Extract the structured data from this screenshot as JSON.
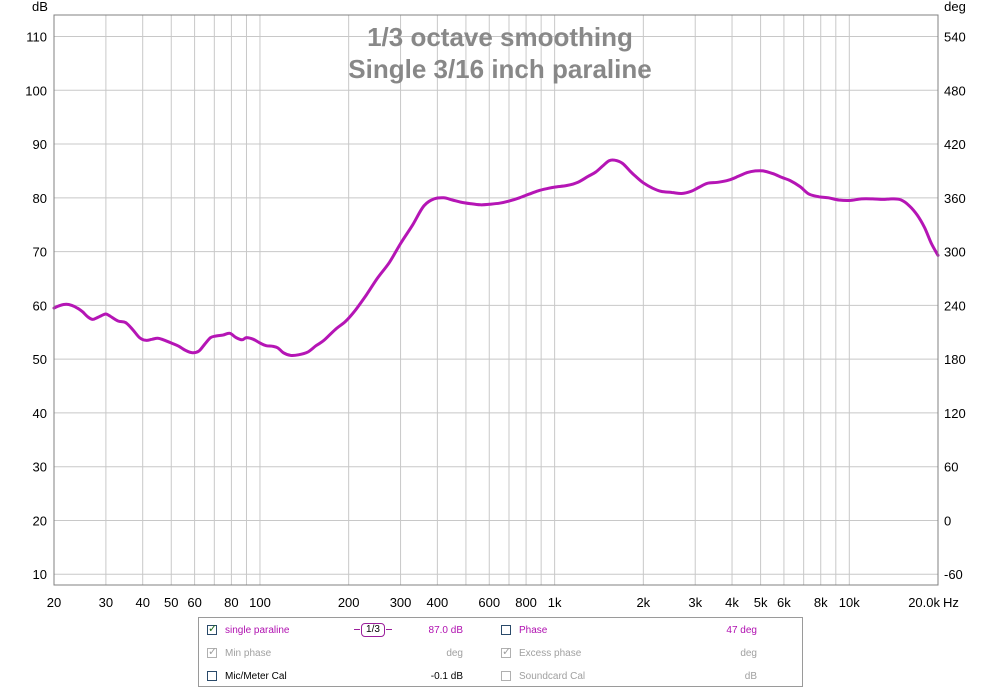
{
  "chart_data": {
    "type": "line",
    "title": "1/3 octave smoothing",
    "subtitle": "Single 3/16 inch paraline",
    "ylabel": "dB",
    "y2label": "deg",
    "xlabel": "Hz",
    "xscale": "log",
    "xlim": [
      20,
      20000
    ],
    "ylim": [
      8,
      114
    ],
    "y2lim": [
      -72,
      564
    ],
    "grid": true,
    "x_tick_labels": [
      {
        "value": 20,
        "label": "20"
      },
      {
        "value": 30,
        "label": "30"
      },
      {
        "value": 40,
        "label": "40"
      },
      {
        "value": 50,
        "label": "50"
      },
      {
        "value": 60,
        "label": "60"
      },
      {
        "value": 80,
        "label": "80"
      },
      {
        "value": 100,
        "label": "100"
      },
      {
        "value": 200,
        "label": "200"
      },
      {
        "value": 300,
        "label": "300"
      },
      {
        "value": 400,
        "label": "400"
      },
      {
        "value": 600,
        "label": "600"
      },
      {
        "value": 800,
        "label": "800"
      },
      {
        "value": 1000,
        "label": "1k"
      },
      {
        "value": 2000,
        "label": "2k"
      },
      {
        "value": 3000,
        "label": "3k"
      },
      {
        "value": 4000,
        "label": "4k"
      },
      {
        "value": 5000,
        "label": "5k"
      },
      {
        "value": 6000,
        "label": "6k"
      },
      {
        "value": 8000,
        "label": "8k"
      },
      {
        "value": 10000,
        "label": "10k"
      },
      {
        "value": 20000,
        "label": "20.0k"
      }
    ],
    "x_minor_grid": [
      70,
      90,
      500,
      700,
      900,
      7000,
      9000
    ],
    "y_ticks": [
      10,
      20,
      30,
      40,
      50,
      60,
      70,
      80,
      90,
      100,
      110
    ],
    "y2_ticks": [
      -60,
      0,
      60,
      120,
      180,
      240,
      300,
      360,
      420,
      480,
      540
    ],
    "series": [
      {
        "name": "single paraline",
        "color": "#b515b5",
        "x": [
          20,
          21,
          22,
          23,
          24,
          25,
          26,
          27,
          28,
          29,
          30,
          31,
          33,
          35,
          37,
          39,
          41,
          43,
          45,
          47,
          50,
          53,
          56,
          59,
          62,
          65,
          68,
          71,
          75,
          79,
          83,
          87,
          90,
          95,
          100,
          105,
          110,
          115,
          120,
          127,
          135,
          145,
          155,
          165,
          180,
          195,
          210,
          230,
          250,
          275,
          300,
          330,
          360,
          390,
          420,
          450,
          480,
          520,
          560,
          600,
          650,
          700,
          760,
          820,
          880,
          940,
          1000,
          1100,
          1200,
          1300,
          1380,
          1460,
          1530,
          1600,
          1700,
          1800,
          1900,
          2000,
          2150,
          2300,
          2500,
          2700,
          2900,
          3100,
          3300,
          3600,
          3900,
          4200,
          4500,
          4800,
          5100,
          5500,
          5900,
          6300,
          6800,
          7300,
          7900,
          8500,
          9200,
          10000,
          11000,
          12000,
          13000,
          14000,
          15000,
          16000,
          17000,
          18000,
          19000,
          20000
        ],
        "y": [
          59.5,
          60.0,
          60.2,
          60.0,
          59.5,
          58.8,
          57.9,
          57.4,
          57.7,
          58.1,
          58.4,
          58.0,
          57.1,
          56.8,
          55.5,
          54.0,
          53.5,
          53.7,
          53.9,
          53.6,
          53.0,
          52.4,
          51.6,
          51.2,
          51.5,
          52.8,
          54.0,
          54.3,
          54.5,
          54.8,
          54.0,
          53.6,
          54.0,
          53.7,
          53.0,
          52.5,
          52.4,
          52.1,
          51.2,
          50.7,
          50.8,
          51.3,
          52.5,
          53.5,
          55.5,
          57.0,
          59.0,
          62.0,
          65.0,
          68.0,
          71.5,
          75.0,
          78.5,
          79.8,
          80.0,
          79.6,
          79.2,
          78.9,
          78.7,
          78.8,
          79.0,
          79.4,
          80.0,
          80.7,
          81.3,
          81.7,
          82.0,
          82.3,
          82.9,
          84.0,
          84.8,
          86.0,
          86.9,
          87.0,
          86.4,
          85.0,
          83.8,
          82.8,
          81.8,
          81.2,
          81.0,
          80.8,
          81.2,
          82.0,
          82.7,
          82.9,
          83.3,
          84.0,
          84.7,
          85.0,
          85.0,
          84.5,
          83.8,
          83.2,
          82.1,
          80.7,
          80.2,
          80.0,
          79.6,
          79.5,
          79.8,
          79.8,
          79.7,
          79.8,
          79.6,
          78.5,
          76.8,
          74.5,
          71.5,
          69.3
        ]
      }
    ]
  },
  "legend": {
    "row1": {
      "series_label": "single paraline",
      "smoothing_label": "1/3",
      "series_value": "87.0 dB",
      "phase_label": "Phase",
      "phase_value": "47 deg"
    },
    "row2": {
      "min_phase_label": "Min phase",
      "min_phase_unit": "deg",
      "excess_phase_label": "Excess phase",
      "excess_phase_unit": "deg"
    },
    "row3": {
      "mic_cal_label": "Mic/Meter Cal",
      "mic_cal_value": "-0.1 dB",
      "soundcard_cal_label": "Soundcard Cal",
      "soundcard_cal_unit": "dB"
    },
    "colors": {
      "active_text": "#b010b0",
      "disabled_text": "#a0a0a0",
      "normal_text": "#000000"
    }
  }
}
